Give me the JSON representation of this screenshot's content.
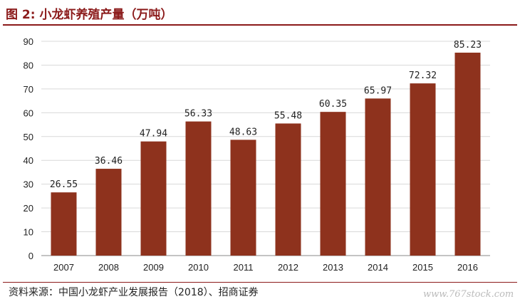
{
  "header": {
    "title": "图 2:  小龙虾养殖产量（万吨）"
  },
  "footer": {
    "source": "资料来源：中国小龙虾产业发展报告（2018）、招商证券",
    "watermark": "www.767stock.com"
  },
  "colors": {
    "bar": "#8e321d",
    "accent": "#8b1a1a",
    "grid": "#d9d9d9"
  },
  "chart_data": {
    "type": "bar",
    "title": "小龙虾养殖产量（万吨）",
    "xlabel": "",
    "ylabel": "",
    "categories": [
      "2007",
      "2008",
      "2009",
      "2010",
      "2011",
      "2012",
      "2013",
      "2014",
      "2015",
      "2016"
    ],
    "values": [
      26.55,
      36.46,
      47.94,
      56.33,
      48.63,
      55.48,
      60.35,
      65.97,
      72.32,
      85.23
    ],
    "value_labels": [
      "26.55",
      "36.46",
      "47.94",
      "56.33",
      "48.63",
      "55.48",
      "60.35",
      "65.97",
      "72.32",
      "85.23"
    ],
    "ylim": [
      0,
      90
    ],
    "yticks": [
      0,
      10,
      20,
      30,
      40,
      50,
      60,
      70,
      80,
      90
    ],
    "grid": true,
    "legend": "none"
  }
}
